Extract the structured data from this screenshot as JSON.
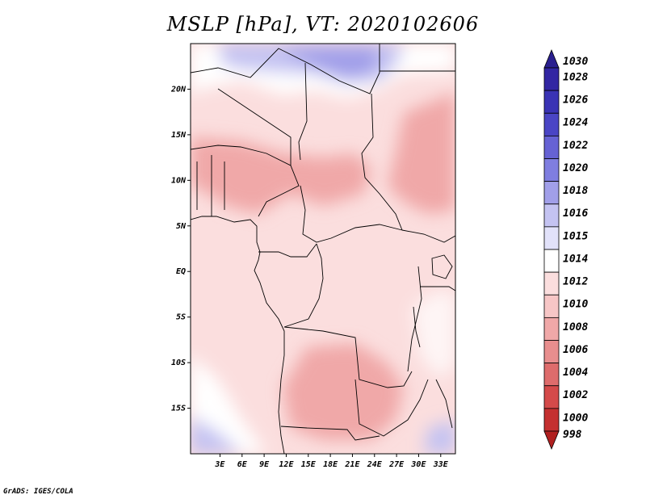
{
  "title": "MSLP [hPa], VT: 2020102606",
  "credit": "GrADS: IGES/COLA",
  "map": {
    "lat_range": [
      -20,
      25
    ],
    "lon_range": [
      -1,
      35
    ],
    "lat_ticks": [
      {
        "value": 20,
        "label": "20N"
      },
      {
        "value": 15,
        "label": "15N"
      },
      {
        "value": 10,
        "label": "10N"
      },
      {
        "value": 5,
        "label": "5N"
      },
      {
        "value": 0,
        "label": "EQ"
      },
      {
        "value": -5,
        "label": "5S"
      },
      {
        "value": -10,
        "label": "10S"
      },
      {
        "value": -15,
        "label": "15S"
      }
    ],
    "lon_ticks": [
      {
        "value": 3,
        "label": "3E"
      },
      {
        "value": 6,
        "label": "6E"
      },
      {
        "value": 9,
        "label": "9E"
      },
      {
        "value": 12,
        "label": "12E"
      },
      {
        "value": 15,
        "label": "15E"
      },
      {
        "value": 18,
        "label": "18E"
      },
      {
        "value": 21,
        "label": "21E"
      },
      {
        "value": 24,
        "label": "24E"
      },
      {
        "value": 27,
        "label": "27E"
      },
      {
        "value": 30,
        "label": "30E"
      },
      {
        "value": 33,
        "label": "33E"
      }
    ]
  },
  "colorbar": {
    "levels": [
      {
        "label": "1030",
        "color": "#2a1f8f"
      },
      {
        "label": "1028",
        "color": "#3226a3"
      },
      {
        "label": "1026",
        "color": "#3a33b5"
      },
      {
        "label": "1024",
        "color": "#4a45c5"
      },
      {
        "label": "1022",
        "color": "#6662d4"
      },
      {
        "label": "1020",
        "color": "#7f7ee0"
      },
      {
        "label": "1018",
        "color": "#a19fe9"
      },
      {
        "label": "1016",
        "color": "#c4c3f2"
      },
      {
        "label": "1015",
        "color": "#e2e2fa"
      },
      {
        "label": "1014",
        "color": "#ffffff"
      },
      {
        "label": "1012",
        "color": "#fbdede"
      },
      {
        "label": "1010",
        "color": "#f7c6c6"
      },
      {
        "label": "1008",
        "color": "#f0a8a8"
      },
      {
        "label": "1006",
        "color": "#e88e8e"
      },
      {
        "label": "1004",
        "color": "#de6c6c"
      },
      {
        "label": "1002",
        "color": "#d44a4a"
      },
      {
        "label": "1000",
        "color": "#c43030"
      },
      {
        "label": "998",
        "color": "#b12020"
      }
    ]
  }
}
